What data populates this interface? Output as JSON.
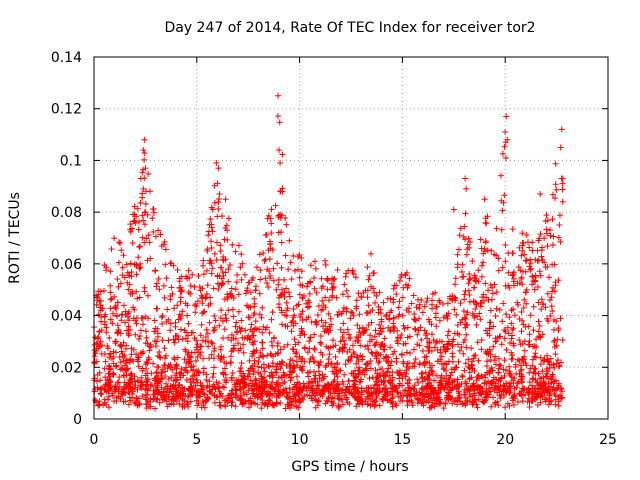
{
  "chart_data": {
    "type": "scatter",
    "title": "Day 247 of 2014, Rate Of TEC Index for receiver tor2",
    "xlabel": "GPS time / hours",
    "ylabel": "ROTI / TECUs",
    "xlim": [
      0,
      25
    ],
    "ylim": [
      0,
      0.14
    ],
    "x_ticks": [
      0,
      5,
      10,
      15,
      20,
      25
    ],
    "x_tick_labels": [
      "0",
      "5",
      "10",
      "15",
      "20",
      "25"
    ],
    "y_ticks": [
      0,
      0.02,
      0.04,
      0.06,
      0.08,
      0.1,
      0.12,
      0.14
    ],
    "y_tick_labels": [
      "0",
      "0.02",
      "0.04",
      "0.06",
      "0.08",
      "0.1",
      "0.12",
      "0.14"
    ],
    "grid": true,
    "marker": "plus",
    "color": "#ff0000",
    "x_data_range": [
      0,
      22.8
    ],
    "envelope": [
      [
        0.0,
        0.045
      ],
      [
        0.5,
        0.062
      ],
      [
        1.0,
        0.075
      ],
      [
        1.5,
        0.065
      ],
      [
        2.0,
        0.085
      ],
      [
        2.5,
        0.108
      ],
      [
        3.0,
        0.078
      ],
      [
        3.5,
        0.068
      ],
      [
        4.0,
        0.06
      ],
      [
        4.5,
        0.058
      ],
      [
        5.0,
        0.055
      ],
      [
        5.5,
        0.068
      ],
      [
        6.0,
        0.099
      ],
      [
        6.5,
        0.08
      ],
      [
        7.0,
        0.07
      ],
      [
        7.5,
        0.055
      ],
      [
        8.0,
        0.065
      ],
      [
        8.5,
        0.08
      ],
      [
        9.0,
        0.125
      ],
      [
        9.5,
        0.07
      ],
      [
        10.0,
        0.065
      ],
      [
        10.5,
        0.062
      ],
      [
        11.0,
        0.06
      ],
      [
        11.5,
        0.065
      ],
      [
        12.0,
        0.055
      ],
      [
        12.5,
        0.06
      ],
      [
        13.0,
        0.05
      ],
      [
        13.5,
        0.065
      ],
      [
        14.0,
        0.045
      ],
      [
        14.5,
        0.05
      ],
      [
        15.0,
        0.06
      ],
      [
        15.5,
        0.055
      ],
      [
        16.0,
        0.045
      ],
      [
        16.5,
        0.05
      ],
      [
        17.0,
        0.045
      ],
      [
        17.5,
        0.05
      ],
      [
        18.0,
        0.093
      ],
      [
        18.5,
        0.06
      ],
      [
        19.0,
        0.085
      ],
      [
        19.5,
        0.07
      ],
      [
        20.0,
        0.117
      ],
      [
        20.5,
        0.07
      ],
      [
        21.0,
        0.075
      ],
      [
        21.5,
        0.065
      ],
      [
        22.0,
        0.087
      ],
      [
        22.5,
        0.105
      ],
      [
        22.8,
        0.112
      ]
    ],
    "outliers": [
      [
        2.45,
        0.108
      ],
      [
        2.4,
        0.104
      ],
      [
        2.5,
        0.097
      ],
      [
        5.95,
        0.099
      ],
      [
        6.05,
        0.097
      ],
      [
        8.95,
        0.125
      ],
      [
        9.0,
        0.104
      ],
      [
        9.05,
        0.099
      ],
      [
        20.05,
        0.117
      ],
      [
        20.0,
        0.111
      ],
      [
        20.1,
        0.108
      ],
      [
        22.75,
        0.112
      ],
      [
        22.7,
        0.105
      ],
      [
        22.8,
        0.093
      ],
      [
        18.05,
        0.093
      ],
      [
        18.1,
        0.089
      ],
      [
        2.4,
        0.089
      ],
      [
        6.1,
        0.087
      ],
      [
        6.4,
        0.085
      ],
      [
        19.0,
        0.085
      ],
      [
        21.7,
        0.087
      ],
      [
        17.5,
        0.081
      ],
      [
        22.8,
        0.084
      ]
    ],
    "point_count": 3400
  }
}
